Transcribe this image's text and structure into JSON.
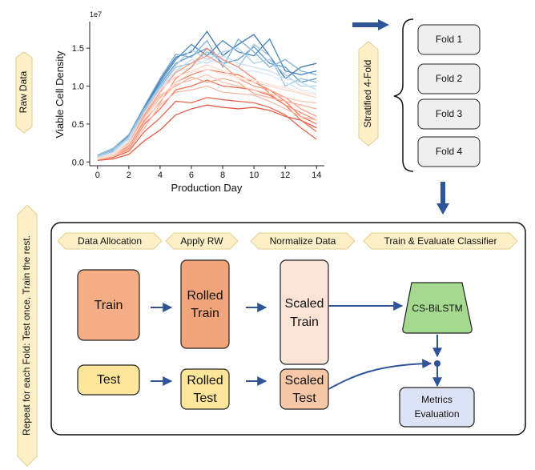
{
  "labels": {
    "raw_data": "Raw Data",
    "stratified": "Stratified 4-Fold",
    "repeat": "Repeat for each Fold: Test once, Train the rest."
  },
  "folds": [
    "Fold 1",
    "Fold 2",
    "Fold 3",
    "Fold 4"
  ],
  "stages": [
    "Data Allocation",
    "Apply RW",
    "Normalize Data",
    "Train & Evaluate Classifier"
  ],
  "boxes": {
    "train": "Train",
    "test": "Test",
    "rolled_train": [
      "Rolled",
      "Train"
    ],
    "rolled_test": [
      "Rolled",
      "Test"
    ],
    "scaled_train": [
      "Scaled",
      "Train"
    ],
    "scaled_test": [
      "Scaled",
      "Test"
    ],
    "classifier": "CS-BiLSTM",
    "metrics": [
      "Metrics",
      "Evaluation"
    ]
  },
  "colors": {
    "train": "#f4ad84",
    "rolled_train": "#f2a57a",
    "scaled_train": "#fbe3d6",
    "test": "#fde699",
    "scaled_test": "#f7c8a8",
    "classifier": "#a5d98f",
    "metrics": "#dbe3f4",
    "fold": "#efefef",
    "tag": "#fdf0c8",
    "arrow": "#2f5597"
  },
  "chart_data": {
    "type": "line",
    "xlabel": "Production Day",
    "ylabel": "Viable Cell Density",
    "scale_label": "1e7",
    "xlim": [
      -0.5,
      14.5
    ],
    "ylim": [
      -0.05,
      1.85
    ],
    "xticks": [
      0,
      2,
      4,
      6,
      8,
      10,
      12,
      14
    ],
    "yticks": [
      0.0,
      0.5,
      1.0,
      1.5
    ],
    "ytick_labels": [
      "0.0",
      "0.5",
      "1.0",
      "1.5"
    ],
    "x": [
      0,
      1,
      2,
      3,
      4,
      5,
      6,
      7,
      8,
      9,
      10,
      11,
      12,
      13,
      14
    ],
    "series": [
      {
        "color": "#3b75af",
        "values": [
          0.08,
          0.15,
          0.35,
          0.72,
          1.08,
          1.38,
          1.45,
          1.72,
          1.4,
          1.55,
          1.68,
          1.4,
          1.1,
          1.25,
          1.3
        ]
      },
      {
        "color": "#4a86bf",
        "values": [
          0.06,
          0.14,
          0.32,
          0.7,
          1.05,
          1.35,
          1.55,
          1.4,
          1.6,
          1.45,
          1.4,
          1.62,
          1.2,
          1.15,
          1.2
        ]
      },
      {
        "color": "#5e98c9",
        "values": [
          0.07,
          0.16,
          0.34,
          0.68,
          1.02,
          1.3,
          1.4,
          1.5,
          1.3,
          1.35,
          1.52,
          1.3,
          1.25,
          1.05,
          1.1
        ]
      },
      {
        "color": "#7aaed6",
        "values": [
          0.09,
          0.18,
          0.36,
          0.74,
          1.1,
          1.42,
          1.38,
          1.6,
          1.25,
          1.62,
          1.45,
          1.25,
          1.35,
          1.2,
          1.15
        ]
      },
      {
        "color": "#93bfe0",
        "values": [
          0.08,
          0.17,
          0.3,
          0.66,
          0.98,
          1.25,
          1.3,
          1.45,
          1.35,
          1.25,
          1.55,
          1.4,
          1.0,
          1.1,
          1.05
        ]
      },
      {
        "color": "#adcfe8",
        "values": [
          0.07,
          0.15,
          0.33,
          0.7,
          1.0,
          1.28,
          1.48,
          1.35,
          1.45,
          1.5,
          1.3,
          1.35,
          1.15,
          1.0,
          1.0
        ]
      },
      {
        "color": "#c5ddef",
        "values": [
          0.06,
          0.13,
          0.31,
          0.64,
          0.96,
          1.2,
          1.35,
          1.3,
          1.4,
          1.3,
          1.25,
          1.2,
          1.1,
          1.05,
          0.95
        ]
      },
      {
        "color": "#d8e8f4",
        "values": [
          0.05,
          0.12,
          0.28,
          0.62,
          0.92,
          1.18,
          1.25,
          1.35,
          1.3,
          1.2,
          1.2,
          1.15,
          1.05,
          0.95,
          0.9
        ]
      },
      {
        "color": "#e45a44",
        "values": [
          0.02,
          0.04,
          0.1,
          0.28,
          0.42,
          0.62,
          0.7,
          0.75,
          0.72,
          0.7,
          0.72,
          0.68,
          0.6,
          0.55,
          0.45
        ]
      },
      {
        "color": "#e8654d",
        "values": [
          0.03,
          0.06,
          0.14,
          0.4,
          0.58,
          0.8,
          0.78,
          0.85,
          0.82,
          0.8,
          0.78,
          0.72,
          0.62,
          0.45,
          0.3
        ]
      },
      {
        "color": "#ec7258",
        "values": [
          0.04,
          0.07,
          0.18,
          0.5,
          0.7,
          0.95,
          1.0,
          1.08,
          1.0,
          0.98,
          0.95,
          0.88,
          0.75,
          0.55,
          0.4
        ]
      },
      {
        "color": "#ef8064",
        "values": [
          0.05,
          0.08,
          0.22,
          0.58,
          0.85,
          1.05,
          1.15,
          1.22,
          1.18,
          1.15,
          1.05,
          0.95,
          0.8,
          0.6,
          0.5
        ]
      },
      {
        "color": "#f28e72",
        "values": [
          0.03,
          0.09,
          0.2,
          0.55,
          0.78,
          1.1,
          1.25,
          1.5,
          1.35,
          1.25,
          1.1,
          0.9,
          0.75,
          0.65,
          0.55
        ]
      },
      {
        "color": "#f49c82",
        "values": [
          0.04,
          0.1,
          0.25,
          0.62,
          0.92,
          1.18,
          1.3,
          1.4,
          1.28,
          1.1,
          1.0,
          0.95,
          0.85,
          0.7,
          0.6
        ]
      },
      {
        "color": "#f6aa92",
        "values": [
          0.05,
          0.09,
          0.24,
          0.6,
          0.88,
          1.0,
          1.12,
          1.05,
          1.1,
          1.05,
          0.9,
          0.85,
          0.8,
          0.75,
          0.7
        ]
      },
      {
        "color": "#f8b8a3",
        "values": [
          0.03,
          0.07,
          0.16,
          0.45,
          0.75,
          0.92,
          0.95,
          1.0,
          0.92,
          0.9,
          0.88,
          0.8,
          0.7,
          0.6,
          0.55
        ]
      },
      {
        "color": "#fac6b4",
        "values": [
          0.04,
          0.08,
          0.19,
          0.52,
          0.8,
          1.02,
          1.08,
          1.15,
          1.05,
          1.0,
          0.95,
          0.9,
          0.85,
          0.8,
          0.78
        ]
      },
      {
        "color": "#fcd4c5",
        "values": [
          0.05,
          0.1,
          0.26,
          0.66,
          0.95,
          1.12,
          1.2,
          1.28,
          1.2,
          1.1,
          1.05,
          1.0,
          0.95,
          0.9,
          0.85
        ]
      },
      {
        "color": "#fde2d7",
        "values": [
          0.04,
          0.09,
          0.23,
          0.58,
          0.86,
          1.05,
          1.18,
          1.22,
          1.15,
          1.12,
          1.08,
          1.02,
          0.98,
          0.92,
          0.88
        ]
      }
    ]
  }
}
